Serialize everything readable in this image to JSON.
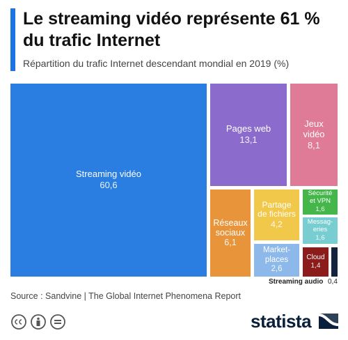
{
  "chart_data": {
    "type": "treemap",
    "title": "Le streaming vidéo représente 61 % du trafic Internet",
    "subtitle": "Répartition du trafic Internet descendant mondial en 2019 (%)",
    "categories": [
      "Streaming vidéo",
      "Pages web",
      "Jeux\nvidéo",
      "Réseaux\nsociaux",
      "Partage\nde fichiers",
      "Market-\nplaces",
      "Sécurité\net VPN",
      "Messag-\neries",
      "Cloud",
      "Streaming audio"
    ],
    "values": [
      60.6,
      13.1,
      8.1,
      6.1,
      4.2,
      2.6,
      1.6,
      1.6,
      1.4,
      0.4
    ],
    "value_labels": [
      "60,6",
      "13,1",
      "8,1",
      "6,1",
      "4,2",
      "2,6",
      "1,6",
      "1,6",
      "1,4",
      "0,4"
    ],
    "colors": [
      "#2a7de1",
      "#8b6ccc",
      "#e07b97",
      "#e8943a",
      "#f2c84b",
      "#8db8ea",
      "#45b649",
      "#78cdd0",
      "#8c1c1c",
      "#14243f"
    ],
    "source": "Source : Sandvine | The Global Internet Phenomena Report",
    "logo": "statista"
  }
}
